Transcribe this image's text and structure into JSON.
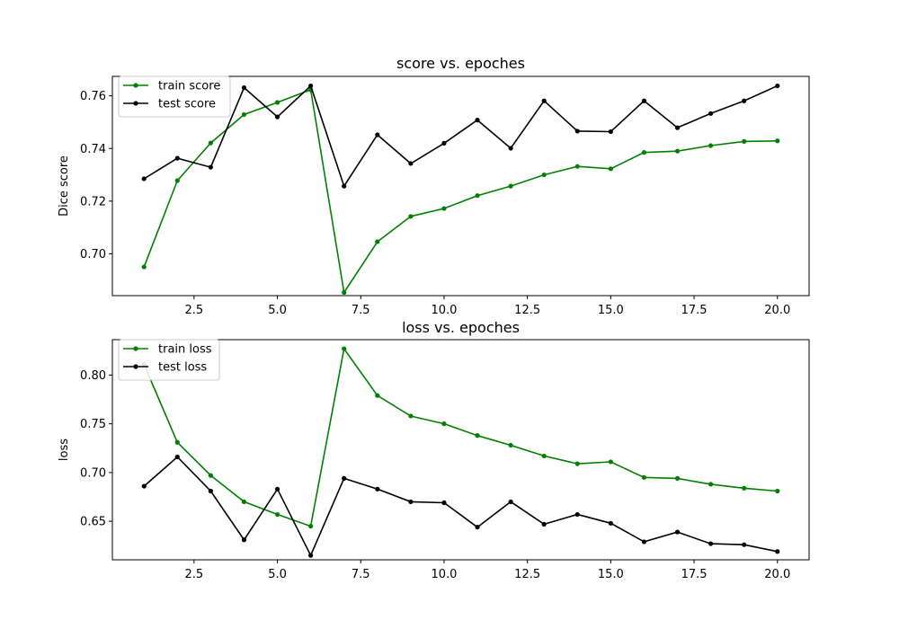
{
  "chart_data": [
    {
      "type": "line",
      "title": "score vs. epoches",
      "xlabel": "",
      "ylabel": "Dice score",
      "xlim": [
        0.05,
        20.95
      ],
      "ylim": [
        0.6841,
        0.7674
      ],
      "xticks": [
        2.5,
        5.0,
        7.5,
        10.0,
        12.5,
        15.0,
        17.5,
        20.0
      ],
      "xtick_labels": [
        "2.5",
        "5.0",
        "7.5",
        "10.0",
        "12.5",
        "15.0",
        "17.5",
        "20.0"
      ],
      "yticks": [
        0.7,
        0.72,
        0.74,
        0.76
      ],
      "ytick_labels": [
        "0.70",
        "0.72",
        "0.74",
        "0.76"
      ],
      "grid": false,
      "legend_position": "upper-left",
      "x": [
        1,
        2,
        3,
        4,
        5,
        6,
        7,
        8,
        9,
        10,
        11,
        12,
        13,
        14,
        15,
        16,
        17,
        18,
        19,
        20
      ],
      "series": [
        {
          "name": "train score",
          "color": "#008000",
          "values": [
            0.695,
            0.7278,
            0.7421,
            0.7529,
            0.7575,
            0.7623,
            0.6853,
            0.7046,
            0.7142,
            0.7172,
            0.7221,
            0.7257,
            0.73,
            0.7332,
            0.7323,
            0.7385,
            0.739,
            0.7411,
            0.7427,
            0.7429
          ]
        },
        {
          "name": "test score",
          "color": "#000000",
          "values": [
            0.7285,
            0.7363,
            0.7329,
            0.7631,
            0.752,
            0.7638,
            0.7257,
            0.7452,
            0.7343,
            0.742,
            0.7508,
            0.7401,
            0.7581,
            0.7466,
            0.7464,
            0.7581,
            0.7479,
            0.7533,
            0.7581,
            0.7638
          ]
        }
      ]
    },
    {
      "type": "line",
      "title": "loss vs. epoches",
      "xlabel": "",
      "ylabel": "loss",
      "xlim": [
        0.05,
        20.95
      ],
      "ylim": [
        0.6105,
        0.8363
      ],
      "xticks": [
        2.5,
        5.0,
        7.5,
        10.0,
        12.5,
        15.0,
        17.5,
        20.0
      ],
      "xtick_labels": [
        "2.5",
        "5.0",
        "7.5",
        "10.0",
        "12.5",
        "15.0",
        "17.5",
        "20.0"
      ],
      "yticks": [
        0.65,
        0.7,
        0.75,
        0.8
      ],
      "ytick_labels": [
        "0.65",
        "0.70",
        "0.75",
        "0.80"
      ],
      "grid": false,
      "legend_position": "upper-left",
      "x": [
        1,
        2,
        3,
        4,
        5,
        6,
        7,
        8,
        9,
        10,
        11,
        12,
        13,
        14,
        15,
        16,
        17,
        18,
        19,
        20
      ],
      "series": [
        {
          "name": "train loss",
          "color": "#008000",
          "values": [
            0.811,
            0.731,
            0.697,
            0.67,
            0.657,
            0.645,
            0.827,
            0.779,
            0.758,
            0.75,
            0.738,
            0.728,
            0.717,
            0.709,
            0.711,
            0.695,
            0.694,
            0.688,
            0.684,
            0.681
          ]
        },
        {
          "name": "test loss",
          "color": "#000000",
          "values": [
            0.686,
            0.716,
            0.681,
            0.631,
            0.683,
            0.615,
            0.694,
            0.683,
            0.67,
            0.669,
            0.644,
            0.67,
            0.647,
            0.657,
            0.648,
            0.629,
            0.639,
            0.627,
            0.626,
            0.619
          ]
        }
      ]
    }
  ]
}
